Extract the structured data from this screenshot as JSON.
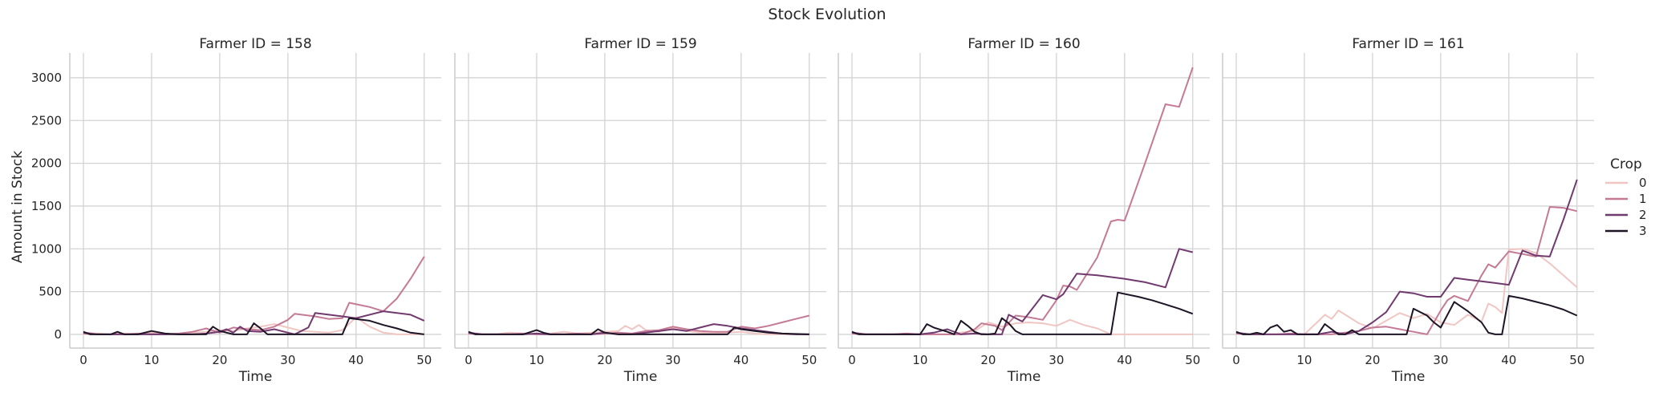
{
  "chart_data": {
    "type": "line",
    "title": "Stock Evolution",
    "xlabel": "Time",
    "ylabel": "Amount in Stock",
    "xlim": [
      -2,
      52.5
    ],
    "ylim": [
      -160,
      3290
    ],
    "xticks": [
      0,
      10,
      20,
      30,
      40,
      50
    ],
    "yticks": [
      0,
      500,
      1000,
      1500,
      2000,
      2500,
      3000
    ],
    "grid": true,
    "legend": {
      "title": "Crop",
      "placement": "right",
      "entries": [
        {
          "label": "0",
          "color": "#f0c6c3"
        },
        {
          "label": "1",
          "color": "#c47a95"
        },
        {
          "label": "2",
          "color": "#703a6e"
        },
        {
          "label": "3",
          "color": "#1d1426"
        }
      ]
    },
    "panels": [
      {
        "title": "Farmer ID = 158",
        "series": [
          {
            "crop": "0",
            "x": [
              0,
              2,
              4,
              6,
              8,
              10,
              12,
              14,
              16,
              18,
              20,
              22,
              24,
              26,
              28,
              30,
              32,
              34,
              36,
              38,
              40,
              42,
              44,
              46,
              48,
              50
            ],
            "y": [
              20,
              10,
              0,
              10,
              0,
              20,
              0,
              10,
              20,
              30,
              50,
              40,
              70,
              90,
              120,
              80,
              40,
              30,
              20,
              50,
              200,
              90,
              20,
              0,
              0,
              0
            ]
          },
          {
            "crop": "1",
            "x": [
              0,
              2,
              4,
              6,
              8,
              10,
              12,
              14,
              16,
              18,
              20,
              22,
              24,
              26,
              28,
              30,
              31,
              34,
              36,
              38,
              39,
              42,
              44,
              46,
              48,
              50
            ],
            "y": [
              10,
              0,
              0,
              0,
              10,
              0,
              0,
              10,
              30,
              70,
              20,
              80,
              60,
              50,
              90,
              170,
              240,
              210,
              180,
              190,
              370,
              320,
              270,
              420,
              650,
              910
            ]
          },
          {
            "crop": "2",
            "x": [
              0,
              2,
              4,
              6,
              8,
              10,
              12,
              14,
              16,
              18,
              20,
              21,
              22,
              23,
              24,
              26,
              28,
              30,
              31,
              33,
              34,
              36,
              38,
              40,
              44,
              48,
              50
            ],
            "y": [
              20,
              0,
              0,
              0,
              0,
              0,
              0,
              0,
              0,
              10,
              30,
              60,
              20,
              90,
              40,
              30,
              60,
              20,
              0,
              80,
              250,
              230,
              210,
              190,
              270,
              230,
              160
            ]
          },
          {
            "crop": "3",
            "x": [
              0,
              1,
              2,
              4,
              5,
              6,
              8,
              10,
              12,
              14,
              16,
              18,
              19,
              20,
              22,
              24,
              25,
              26,
              27,
              28,
              30,
              34,
              36,
              38,
              39,
              42,
              44,
              46,
              48,
              50
            ],
            "y": [
              30,
              0,
              0,
              0,
              30,
              0,
              0,
              40,
              10,
              0,
              0,
              0,
              90,
              40,
              0,
              0,
              130,
              70,
              0,
              0,
              0,
              0,
              0,
              0,
              190,
              160,
              110,
              70,
              20,
              0
            ]
          }
        ]
      },
      {
        "title": "Farmer ID = 159",
        "series": [
          {
            "crop": "0",
            "x": [
              0,
              2,
              4,
              6,
              8,
              10,
              12,
              14,
              16,
              18,
              20,
              22,
              23,
              24,
              25,
              26,
              28,
              30,
              32,
              34,
              36,
              38,
              40,
              42,
              44,
              46,
              48,
              50
            ],
            "y": [
              10,
              0,
              0,
              20,
              10,
              0,
              10,
              30,
              10,
              20,
              30,
              40,
              100,
              60,
              110,
              50,
              30,
              80,
              40,
              20,
              10,
              20,
              30,
              10,
              0,
              0,
              0,
              0
            ]
          },
          {
            "crop": "1",
            "x": [
              0,
              2,
              4,
              6,
              8,
              10,
              12,
              14,
              16,
              18,
              20,
              22,
              24,
              26,
              28,
              30,
              32,
              34,
              36,
              38,
              40,
              42,
              44,
              46,
              48,
              50
            ],
            "y": [
              10,
              0,
              0,
              0,
              10,
              0,
              0,
              0,
              10,
              0,
              10,
              20,
              10,
              40,
              50,
              90,
              60,
              40,
              30,
              30,
              90,
              70,
              100,
              140,
              180,
              220
            ]
          },
          {
            "crop": "2",
            "x": [
              0,
              2,
              4,
              6,
              8,
              10,
              12,
              14,
              16,
              18,
              20,
              22,
              24,
              26,
              28,
              30,
              32,
              34,
              36,
              38,
              40,
              42,
              44,
              46,
              48,
              50
            ],
            "y": [
              20,
              0,
              0,
              0,
              0,
              10,
              0,
              0,
              0,
              0,
              20,
              0,
              0,
              20,
              40,
              60,
              40,
              80,
              120,
              100,
              70,
              50,
              30,
              10,
              0,
              0
            ]
          },
          {
            "crop": "3",
            "x": [
              0,
              1,
              2,
              4,
              6,
              8,
              10,
              11,
              12,
              14,
              16,
              18,
              19,
              20,
              22,
              24,
              26,
              28,
              30,
              32,
              34,
              36,
              38,
              39,
              40,
              42,
              44,
              46,
              48,
              50
            ],
            "y": [
              30,
              0,
              0,
              0,
              0,
              0,
              50,
              20,
              0,
              0,
              0,
              0,
              60,
              20,
              0,
              0,
              0,
              0,
              0,
              0,
              0,
              0,
              0,
              80,
              60,
              40,
              20,
              10,
              5,
              0
            ]
          }
        ]
      },
      {
        "title": "Farmer ID = 160",
        "series": [
          {
            "crop": "0",
            "x": [
              0,
              2,
              4,
              6,
              8,
              10,
              12,
              14,
              16,
              18,
              20,
              22,
              24,
              26,
              28,
              30,
              32,
              34,
              36,
              38,
              39,
              42,
              44,
              46,
              48,
              50
            ],
            "y": [
              20,
              0,
              0,
              0,
              10,
              0,
              0,
              0,
              20,
              40,
              140,
              90,
              130,
              140,
              130,
              100,
              170,
              110,
              70,
              0,
              0,
              0,
              0,
              0,
              0,
              0
            ]
          },
          {
            "crop": "1",
            "x": [
              0,
              2,
              4,
              6,
              8,
              10,
              12,
              14,
              16,
              18,
              19,
              21,
              22,
              24,
              26,
              28,
              30,
              31,
              32,
              33,
              36,
              38,
              39,
              40,
              43,
              46,
              48,
              50
            ],
            "y": [
              10,
              0,
              0,
              0,
              10,
              0,
              0,
              0,
              0,
              60,
              130,
              100,
              50,
              220,
              200,
              170,
              400,
              570,
              560,
              520,
              900,
              1320,
              1340,
              1330,
              2000,
              2690,
              2660,
              3120
            ]
          },
          {
            "crop": "2",
            "x": [
              0,
              2,
              4,
              6,
              8,
              10,
              12,
              14,
              16,
              18,
              20,
              22,
              23,
              25,
              28,
              30,
              31,
              33,
              36,
              40,
              43,
              46,
              48,
              50
            ],
            "y": [
              20,
              0,
              0,
              0,
              0,
              0,
              20,
              60,
              0,
              10,
              0,
              0,
              230,
              150,
              460,
              410,
              470,
              710,
              690,
              650,
              610,
              550,
              1000,
              960
            ]
          },
          {
            "crop": "3",
            "x": [
              0,
              1,
              2,
              4,
              6,
              8,
              10,
              11,
              12,
              14,
              15,
              16,
              17,
              18,
              19,
              20,
              21,
              22,
              23,
              24,
              25,
              26,
              28,
              30,
              32,
              34,
              36,
              38,
              39,
              42,
              44,
              46,
              48,
              50
            ],
            "y": [
              30,
              0,
              0,
              0,
              0,
              0,
              0,
              120,
              80,
              30,
              0,
              160,
              100,
              30,
              0,
              0,
              10,
              190,
              130,
              40,
              0,
              0,
              0,
              0,
              0,
              0,
              0,
              0,
              490,
              440,
              400,
              350,
              300,
              240
            ]
          }
        ]
      },
      {
        "title": "Farmer ID = 161",
        "series": [
          {
            "crop": "0",
            "x": [
              0,
              2,
              4,
              6,
              8,
              10,
              12,
              13,
              14,
              15,
              16,
              18,
              20,
              22,
              24,
              26,
              28,
              30,
              32,
              34,
              36,
              37,
              38,
              39,
              40,
              42,
              44,
              46,
              48,
              50
            ],
            "y": [
              10,
              0,
              0,
              0,
              0,
              0,
              150,
              230,
              180,
              280,
              230,
              130,
              70,
              160,
              250,
              190,
              240,
              140,
              110,
              230,
              150,
              360,
              320,
              250,
              990,
              1000,
              950,
              830,
              690,
              550
            ]
          },
          {
            "crop": "1",
            "x": [
              0,
              2,
              4,
              6,
              8,
              10,
              12,
              14,
              16,
              18,
              20,
              22,
              24,
              26,
              28,
              30,
              31,
              32,
              34,
              36,
              37,
              38,
              40,
              42,
              44,
              46,
              48,
              50
            ],
            "y": [
              10,
              0,
              0,
              0,
              10,
              0,
              0,
              0,
              20,
              40,
              80,
              90,
              60,
              30,
              0,
              280,
              400,
              450,
              390,
              690,
              820,
              780,
              970,
              940,
              910,
              1490,
              1480,
              1440
            ]
          },
          {
            "crop": "2",
            "x": [
              0,
              2,
              4,
              6,
              8,
              10,
              12,
              14,
              16,
              18,
              20,
              22,
              24,
              26,
              28,
              30,
              32,
              34,
              36,
              38,
              40,
              42,
              44,
              46,
              48,
              50
            ],
            "y": [
              20,
              0,
              0,
              0,
              0,
              0,
              0,
              30,
              0,
              40,
              140,
              260,
              500,
              480,
              440,
              440,
              660,
              640,
              620,
              600,
              580,
              980,
              920,
              910,
              1340,
              1810
            ]
          },
          {
            "crop": "3",
            "x": [
              0,
              1,
              2,
              3,
              4,
              5,
              6,
              7,
              8,
              9,
              10,
              12,
              13,
              14,
              15,
              16,
              17,
              18,
              19,
              20,
              22,
              24,
              25,
              26,
              28,
              29,
              30,
              32,
              34,
              36,
              37,
              38,
              39,
              40,
              42,
              44,
              46,
              48,
              50
            ],
            "y": [
              30,
              0,
              0,
              20,
              0,
              80,
              110,
              30,
              50,
              0,
              0,
              0,
              120,
              60,
              0,
              0,
              50,
              0,
              0,
              0,
              0,
              0,
              0,
              300,
              220,
              140,
              80,
              380,
              270,
              140,
              20,
              0,
              0,
              450,
              420,
              380,
              340,
              290,
              220
            ]
          }
        ]
      }
    ]
  }
}
